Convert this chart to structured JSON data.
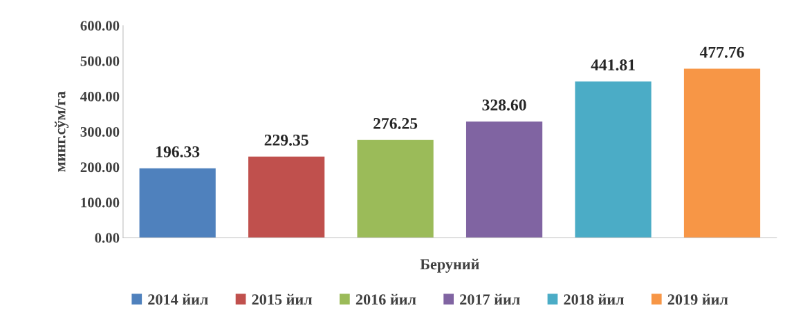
{
  "chart_data": {
    "type": "bar",
    "ylabel": "минг.сўм/га",
    "categories": [
      "Беруний"
    ],
    "series": [
      {
        "name": "2014 йил",
        "color": "#4f81bd",
        "values": [
          196.33
        ],
        "value_labels": [
          "196.33"
        ]
      },
      {
        "name": "2015 йил",
        "color": "#c0504d",
        "values": [
          229.35
        ],
        "value_labels": [
          "229.35"
        ]
      },
      {
        "name": "2016 йил",
        "color": "#9bbb59",
        "values": [
          276.25
        ],
        "value_labels": [
          "276.25"
        ]
      },
      {
        "name": "2017 йил",
        "color": "#8064a2",
        "values": [
          328.6
        ],
        "value_labels": [
          "328.60"
        ]
      },
      {
        "name": "2018 йил",
        "color": "#4bacc6",
        "values": [
          441.81
        ],
        "value_labels": [
          "441.81"
        ]
      },
      {
        "name": "2019 йил",
        "color": "#f79646",
        "values": [
          477.76
        ],
        "value_labels": [
          "477.76"
        ]
      }
    ],
    "ylim": [
      0,
      600
    ],
    "yticks": [
      {
        "value": 0,
        "label": "0.00"
      },
      {
        "value": 100,
        "label": "100.00"
      },
      {
        "value": 200,
        "label": "200.00"
      },
      {
        "value": 300,
        "label": "300.00"
      },
      {
        "value": 400,
        "label": "400.00"
      },
      {
        "value": 500,
        "label": "500.00"
      },
      {
        "value": 600,
        "label": "600.00"
      }
    ],
    "grid": false,
    "legend": "bottom"
  }
}
